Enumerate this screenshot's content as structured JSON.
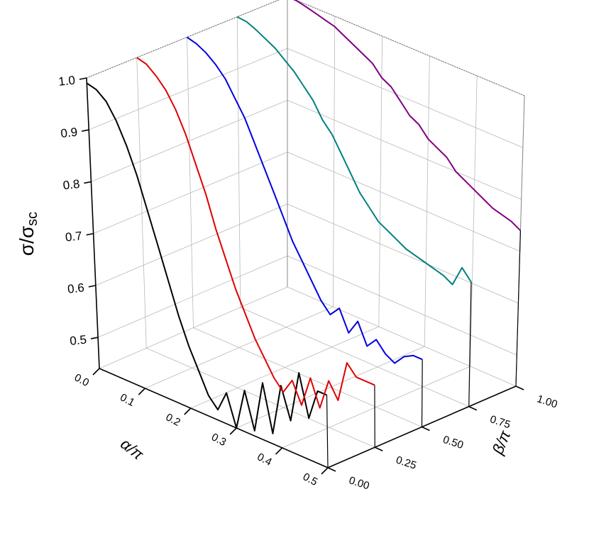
{
  "chart_data": {
    "type": "line3d",
    "x_label": "α/π",
    "y_label": "β/π",
    "z_label": "σ/σ",
    "z_label_sub": "sc",
    "xlim": [
      0,
      0.5
    ],
    "ylim": [
      0,
      1
    ],
    "zlim": [
      0.44,
      1.0
    ],
    "xticks": [
      {
        "value": 0,
        "label": "0.0"
      },
      0.1,
      0.2,
      0.3,
      0.4,
      0.5
    ],
    "yticks": [
      {
        "value": 0,
        "label": "0.00"
      },
      {
        "value": 0.25,
        "label": "0.25"
      },
      {
        "value": 0.5,
        "label": "0.50"
      },
      {
        "value": 0.75,
        "label": "0.75"
      },
      {
        "value": 1,
        "label": "1.00"
      }
    ],
    "zticks": [
      0.5,
      0.6,
      0.7,
      0.8,
      0.9,
      {
        "value": 1,
        "label": "1.0"
      }
    ],
    "grid": true,
    "x": [
      0,
      0.02,
      0.04,
      0.06,
      0.08,
      0.1,
      0.12,
      0.14,
      0.16,
      0.18,
      0.2,
      0.22,
      0.24,
      0.26,
      0.28,
      0.3,
      0.32,
      0.34,
      0.36,
      0.38,
      0.4,
      0.42,
      0.44,
      0.46,
      0.48,
      0.5
    ],
    "series": [
      {
        "beta": 0,
        "color": "#000000",
        "values": [
          0.99,
          0.985,
          0.97,
          0.94,
          0.9,
          0.85,
          0.79,
          0.73,
          0.67,
          0.61,
          0.56,
          0.52,
          0.48,
          0.46,
          0.5,
          0.44,
          0.52,
          0.45,
          0.55,
          0.46,
          0.56,
          0.5,
          0.6,
          0.52,
          0.58,
          0.58
        ]
      },
      {
        "beta": 0.25,
        "color": "#e00000",
        "values": [
          1.0,
          0.995,
          0.98,
          0.96,
          0.93,
          0.89,
          0.84,
          0.79,
          0.73,
          0.68,
          0.63,
          0.59,
          0.55,
          0.52,
          0.49,
          0.47,
          0.5,
          0.46,
          0.52,
          0.47,
          0.53,
          0.5,
          0.58,
          0.56,
          0.56,
          0.56
        ]
      },
      {
        "beta": 0.5,
        "color": "#0000e0",
        "values": [
          1.0,
          0.995,
          0.985,
          0.97,
          0.95,
          0.92,
          0.89,
          0.85,
          0.81,
          0.77,
          0.73,
          0.69,
          0.66,
          0.63,
          0.6,
          0.58,
          0.6,
          0.56,
          0.59,
          0.55,
          0.57,
          0.55,
          0.54,
          0.56,
          0.57,
          0.57
        ]
      },
      {
        "beta": 0.75,
        "color": "#008080",
        "values": [
          1.0,
          0.998,
          0.99,
          0.98,
          0.97,
          0.955,
          0.94,
          0.92,
          0.9,
          0.87,
          0.85,
          0.82,
          0.79,
          0.76,
          0.74,
          0.72,
          0.71,
          0.7,
          0.69,
          0.685,
          0.68,
          0.675,
          0.67,
          0.66,
          0.7,
          0.68
        ]
      },
      {
        "beta": 1,
        "color": "#800080",
        "values": [
          1.0,
          0.999,
          0.995,
          0.99,
          0.985,
          0.98,
          0.97,
          0.96,
          0.95,
          0.94,
          0.92,
          0.91,
          0.89,
          0.87,
          0.86,
          0.84,
          0.83,
          0.82,
          0.8,
          0.79,
          0.78,
          0.77,
          0.76,
          0.755,
          0.75,
          0.74
        ]
      }
    ]
  }
}
